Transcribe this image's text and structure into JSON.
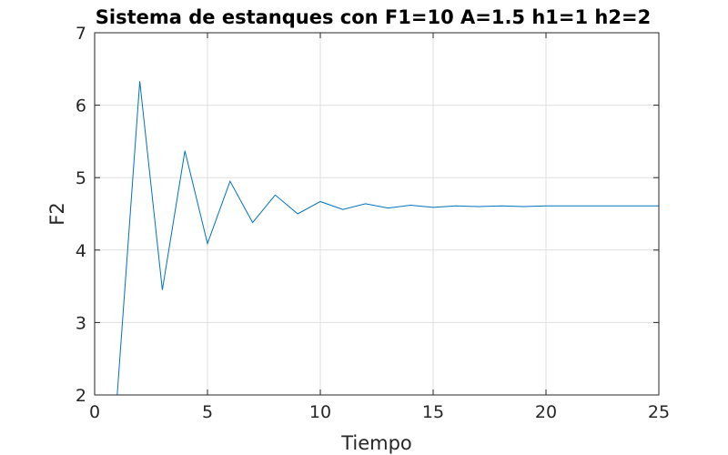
{
  "chart_data": {
    "type": "line",
    "title": "Sistema de estanques con F1=10 A=1.5 h1=1 h2=2",
    "xlabel": "Tiempo",
    "ylabel": "F2",
    "xlim": [
      0,
      25
    ],
    "ylim": [
      2,
      7
    ],
    "xticks": [
      0,
      5,
      10,
      15,
      20,
      25
    ],
    "yticks": [
      2,
      3,
      4,
      5,
      6,
      7
    ],
    "grid": true,
    "series": [
      {
        "color": "#0072bd",
        "x": [
          1,
          2,
          3,
          4,
          5,
          6,
          7,
          8,
          9,
          10,
          11,
          12,
          13,
          14,
          15,
          16,
          17,
          18,
          19,
          20,
          21,
          22,
          23,
          24,
          25
        ],
        "y": [
          2.0,
          6.33,
          3.45,
          5.37,
          4.09,
          4.95,
          4.38,
          4.76,
          4.5,
          4.67,
          4.56,
          4.64,
          4.58,
          4.62,
          4.59,
          4.61,
          4.6,
          4.61,
          4.6,
          4.61,
          4.61,
          4.61,
          4.61,
          4.61,
          4.61
        ]
      }
    ]
  }
}
